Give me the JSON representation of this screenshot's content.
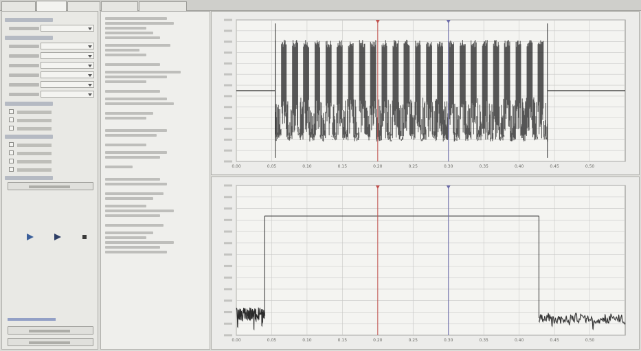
{
  "tabs": [
    {
      "label": "",
      "active": false
    },
    {
      "label": "",
      "active": true
    },
    {
      "label": "",
      "active": false
    },
    {
      "label": "",
      "active": false
    },
    {
      "label": "",
      "active": false
    }
  ],
  "left_panel": {
    "rows": [
      {
        "kind": "section",
        "label": ""
      },
      {
        "kind": "dropdown",
        "label": "",
        "value": ""
      },
      {
        "kind": "section",
        "label": ""
      },
      {
        "kind": "dropdown",
        "label": "",
        "value": ""
      },
      {
        "kind": "dropdown",
        "label": "",
        "value": ""
      },
      {
        "kind": "dropdown",
        "label": "",
        "value": ""
      },
      {
        "kind": "dropdown",
        "label": "",
        "value": ""
      },
      {
        "kind": "dropdown",
        "label": "",
        "value": ""
      },
      {
        "kind": "dropdown",
        "label": "",
        "value": ""
      },
      {
        "kind": "section",
        "label": ""
      },
      {
        "kind": "checkbox",
        "label": "",
        "checked": false
      },
      {
        "kind": "checkbox",
        "label": "",
        "checked": false
      },
      {
        "kind": "checkbox",
        "label": "",
        "checked": false
      },
      {
        "kind": "section",
        "label": ""
      },
      {
        "kind": "checkbox",
        "label": "",
        "checked": false
      },
      {
        "kind": "checkbox",
        "label": "",
        "checked": false
      },
      {
        "kind": "checkbox",
        "label": "",
        "checked": false
      },
      {
        "kind": "checkbox",
        "label": "",
        "checked": false
      },
      {
        "kind": "section",
        "label": ""
      },
      {
        "kind": "button",
        "label": ""
      }
    ],
    "bottom_link": "",
    "bottom_buttons": [
      "",
      ""
    ]
  },
  "results_panel": {
    "lines": []
  },
  "chart_data": [
    {
      "type": "line",
      "title": "",
      "marker_a_readout": "",
      "marker_b_readout": "",
      "xlabel": "",
      "ylabel": "",
      "xlim": [
        0.0,
        0.55
      ],
      "ylim": [
        -2.5,
        2.5
      ],
      "x_ticks": [
        "0.00",
        "0.05",
        "0.10",
        "0.15",
        "0.20",
        "0.25",
        "0.30",
        "0.35",
        "0.40",
        "0.45",
        "0.50"
      ],
      "y_ticks": [],
      "marker_a_x": 0.2,
      "marker_b_x": 0.3,
      "series": [
        {
          "values_description": "",
          "segments": [
            {
              "x": [
                0.0,
                0.055
              ],
              "y": [
                0.0,
                0.0
              ]
            },
            {
              "x": [
                0.055,
                0.44
              ],
              "envelope": [
                -1.8,
                1.8
              ]
            },
            {
              "x": [
                0.44,
                0.55
              ],
              "y": [
                0.0,
                0.0
              ]
            }
          ]
        }
      ],
      "grid": true
    },
    {
      "type": "line",
      "title": "",
      "marker_a_readout": "",
      "marker_b_readout": "",
      "xlabel": "",
      "ylabel": "",
      "xlim": [
        0.0,
        0.55
      ],
      "ylim": [
        -120,
        20
      ],
      "x_ticks": [
        "0.00",
        "0.05",
        "0.10",
        "0.15",
        "0.20",
        "0.25",
        "0.30",
        "0.35",
        "0.40",
        "0.45",
        "0.50"
      ],
      "y_ticks": [],
      "marker_a_x": 0.2,
      "marker_b_x": 0.3,
      "series": [
        {
          "segments": [
            {
              "x": [
                0.0,
                0.04
              ],
              "y": [
                -100,
                -100
              ],
              "noise": 6
            },
            {
              "x": [
                0.04,
                0.428
              ],
              "y": [
                -8.6,
                -8.6
              ]
            },
            {
              "x": [
                0.428,
                0.55
              ],
              "y": [
                -104,
                -104
              ],
              "noise": 5
            }
          ]
        }
      ],
      "grid": true
    }
  ],
  "colors": {
    "trace": "#2b2b2b",
    "marker_a": "#c0504d",
    "marker_b": "#6a6aa8",
    "grid": "#c8c8c6",
    "plot_bg": "#f4f4f1"
  }
}
